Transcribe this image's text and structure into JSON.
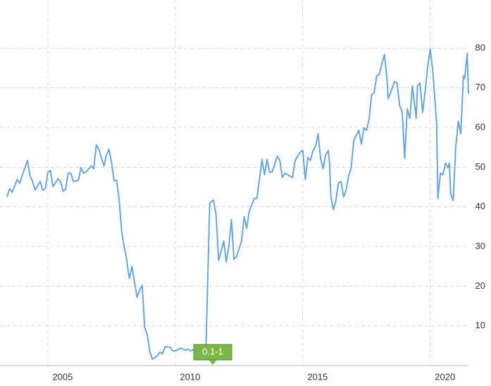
{
  "chart_data": {
    "type": "line",
    "color": "#6aa6dc",
    "grid": true,
    "annotation": "0.1-1",
    "xlim": [
      2003.4,
      2021.5
    ],
    "xticks": [
      2005,
      2010,
      2015,
      2020
    ],
    "ylim": [
      0,
      90
    ],
    "yticks": [
      10,
      20,
      30,
      40,
      50,
      60,
      70,
      80
    ],
    "x": [
      2003.4,
      2003.5,
      2003.6,
      2003.8,
      2003.9,
      2004.0,
      2004.2,
      2004.3,
      2004.4,
      2004.5,
      2004.7,
      2004.8,
      2004.9,
      2005.0,
      2005.1,
      2005.2,
      2005.4,
      2005.5,
      2005.6,
      2005.7,
      2005.8,
      2005.9,
      2006.0,
      2006.2,
      2006.3,
      2006.4,
      2006.5,
      2006.7,
      2006.8,
      2006.9,
      2007.0,
      2007.2,
      2007.3,
      2007.4,
      2007.5,
      2007.6,
      2007.7,
      2007.8,
      2007.9,
      2008.0,
      2008.1,
      2008.15,
      2008.2,
      2008.3,
      2008.4,
      2008.5,
      2008.6,
      2008.7,
      2008.8,
      2008.9,
      2009.0,
      2009.1,
      2009.3,
      2009.4,
      2009.5,
      2009.6,
      2009.8,
      2009.9,
      2010.0,
      2010.2,
      2010.4,
      2010.5,
      2010.6,
      2010.8,
      2011.0,
      2011.2,
      2011.35,
      2011.5,
      2011.6,
      2011.7,
      2011.9,
      2012.0,
      2012.1,
      2012.2,
      2012.3,
      2012.4,
      2012.6,
      2012.7,
      2012.8,
      2012.9,
      2013.1,
      2013.2,
      2013.3,
      2013.4,
      2013.5,
      2013.6,
      2013.7,
      2013.8,
      2014.0,
      2014.1,
      2014.2,
      2014.3,
      2014.4,
      2014.6,
      2014.7,
      2014.9,
      2015.0,
      2015.1,
      2015.2,
      2015.3,
      2015.4,
      2015.5,
      2015.6,
      2015.7,
      2015.8,
      2015.9,
      2016.0,
      2016.05,
      2016.1,
      2016.2,
      2016.3,
      2016.4,
      2016.5,
      2016.6,
      2016.7,
      2016.8,
      2016.9,
      2017.0,
      2017.2,
      2017.3,
      2017.4,
      2017.5,
      2017.6,
      2017.7,
      2017.8,
      2017.9,
      2018.0,
      2018.2,
      2018.3,
      2018.35,
      2018.4,
      2018.6,
      2018.7,
      2018.8,
      2018.9,
      2019.0,
      2019.1,
      2019.2,
      2019.3,
      2019.45,
      2019.5,
      2019.6,
      2019.7,
      2019.8,
      2019.9,
      2020.0,
      2020.1,
      2020.25,
      2020.3,
      2020.4,
      2020.5,
      2020.6,
      2020.7,
      2020.75,
      2020.8,
      2020.9,
      2021.0,
      2021.1,
      2021.2,
      2021.3,
      2021.35,
      2021.45,
      2021.5
    ],
    "values": [
      42.5,
      44.6,
      43.7,
      46.9,
      46,
      48,
      51.7,
      47.8,
      46.4,
      44.2,
      46.4,
      44.2,
      44.6,
      48.7,
      49.2,
      45.1,
      47.1,
      46.4,
      43.9,
      44.6,
      48.5,
      48.5,
      46.4,
      46.7,
      49.9,
      48.5,
      48.8,
      50.3,
      49.6,
      55.6,
      54.5,
      50.3,
      53.1,
      54.5,
      51,
      46.5,
      46.7,
      41.6,
      33.6,
      29.7,
      26.5,
      23.8,
      22,
      25,
      21.1,
      17.2,
      19,
      20.2,
      9.6,
      7.8,
      3.4,
      1.6,
      2.5,
      3.4,
      3,
      4.8,
      4.6,
      3.7,
      3.7,
      4.4,
      3.9,
      4.1,
      3.7,
      4.3,
      3.7,
      4.1,
      41,
      41.7,
      38,
      26.5,
      31.4,
      26.1,
      30,
      36.8,
      26.8,
      27.4,
      31.4,
      37.5,
      34.6,
      38.9,
      42.1,
      42.1,
      46.9,
      52,
      48.1,
      52,
      48.7,
      48.8,
      52.8,
      51.7,
      47.4,
      48.5,
      48.1,
      47.4,
      51.7,
      53.8,
      54.2,
      46.9,
      52.4,
      51.7,
      54.2,
      55.2,
      58.4,
      52.2,
      49.6,
      53.1,
      54.2,
      51,
      42.8,
      39.3,
      41.6,
      46,
      46.4,
      42.5,
      44.2,
      47.8,
      49.9,
      56.7,
      59.3,
      55.8,
      59.9,
      59.3,
      62,
      68.2,
      68.7,
      73,
      73.4,
      78.4,
      72.6,
      67.3,
      68,
      71.6,
      71.2,
      65.5,
      64.1,
      52.2,
      64.7,
      62.3,
      70.5,
      62.3,
      70.5,
      71.2,
      63.8,
      69.1,
      75.3,
      79.8,
      74.4,
      61.1,
      42.1,
      48.5,
      48.1,
      51,
      49.9,
      51,
      43.3,
      41.6,
      54.9,
      61.6,
      58.4,
      73,
      72.3,
      78.7,
      68.5
    ]
  }
}
